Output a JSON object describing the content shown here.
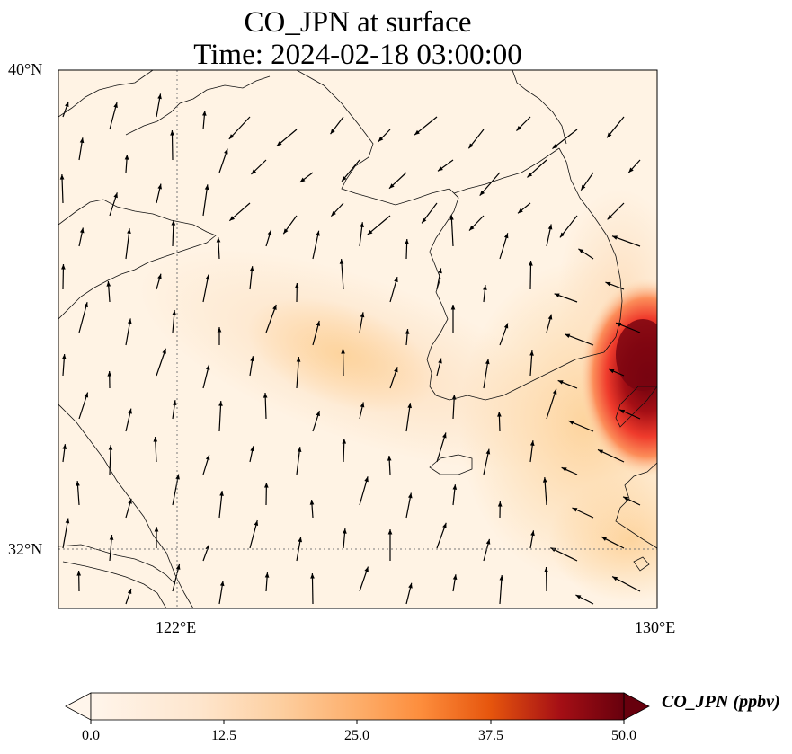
{
  "title_line1": "CO_JPN at surface",
  "title_line2": "Time: 2024-02-18 03:00:00",
  "lat_labels": {
    "north": "40°N",
    "south": "32°N"
  },
  "lon_labels": {
    "west": "122°E",
    "east": "130°E"
  },
  "colorbar": {
    "label": "CO_JPN (ppbv)",
    "ticks": [
      "0.0",
      "12.5",
      "25.0",
      "37.5",
      "50.0"
    ],
    "min": 0,
    "max": 50,
    "extend": "both",
    "colors": [
      "#fff5eb",
      "#fdd8b0",
      "#fdae6b",
      "#f16913",
      "#a50f15",
      "#67000d"
    ]
  },
  "map": {
    "lon_range": [
      120,
      130
    ],
    "lat_range": [
      31,
      40
    ],
    "gridlines": {
      "lon": [
        122
      ],
      "lat": [
        32
      ]
    },
    "wind_vectors": "present",
    "high_concentration_region": "southeast of Korea / western Japan",
    "max_value_approx": 50
  }
}
